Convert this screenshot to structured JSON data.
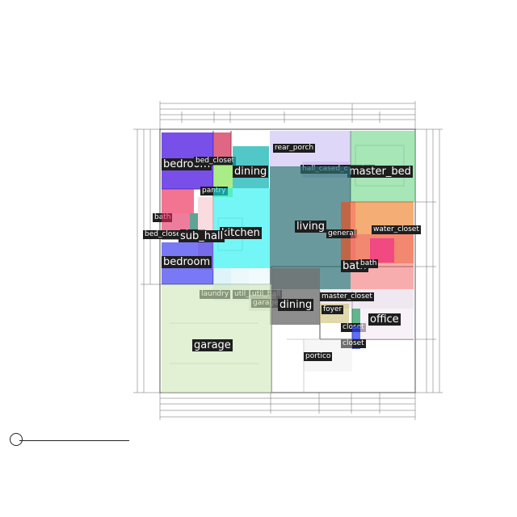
{
  "plan": {
    "rooms": [
      {
        "id": "bedroom-1",
        "label": "bedroom",
        "size": "lg",
        "color": "#4b14e0",
        "opacity": 0.75
      },
      {
        "id": "bed-closet-1",
        "label": "bed_closet",
        "size": "sm",
        "color": "#d0264f",
        "opacity": 0.7
      },
      {
        "id": "dining-1",
        "label": "dining",
        "size": "lg",
        "color": "#17b4b4",
        "opacity": 0.75
      },
      {
        "id": "rear-porch",
        "label": "rear_porch",
        "size": "sm",
        "color": "#c2b6f2",
        "opacity": 0.55
      },
      {
        "id": "hall-cased-opening",
        "label": "hall_cased_opening",
        "size": "sm",
        "color": "#c7b6ee",
        "opacity": 0.5
      },
      {
        "id": "master-bed",
        "label": "master_bed",
        "size": "lg",
        "color": "#5dd27b",
        "opacity": 0.55
      },
      {
        "id": "pantry",
        "label": "pantry",
        "size": "sm",
        "color": "#86e652",
        "opacity": 0.7
      },
      {
        "id": "kitchen",
        "label": "kitchen",
        "size": "lg",
        "color": "#19f0f0",
        "opacity": 0.6
      },
      {
        "id": "living",
        "label": "living",
        "size": "lg",
        "color": "#2b6e73",
        "opacity": 0.7
      },
      {
        "id": "bath-1",
        "label": "bath",
        "size": "sm",
        "color": "#ec2a55",
        "opacity": 0.65
      },
      {
        "id": "bed-closet-2",
        "label": "bed_closet",
        "size": "sm",
        "color": "#e2245a",
        "opacity": 0.6
      },
      {
        "id": "closet-1",
        "label": "closet",
        "size": "sm",
        "color": "#1d7a66",
        "opacity": 0.7
      },
      {
        "id": "sub-hall",
        "label": "sub_hall",
        "size": "lg",
        "color": "#f6c4cc",
        "opacity": 0.6
      },
      {
        "id": "general",
        "label": "general",
        "size": "sm",
        "color": "#f04a18",
        "opacity": 0.65
      },
      {
        "id": "water-closet",
        "label": "water_closet",
        "size": "sm",
        "color": "#f08a3a",
        "opacity": 0.7
      },
      {
        "id": "bath-2",
        "label": "bath",
        "size": "lg",
        "color": "#f06a6a",
        "opacity": 0.55
      },
      {
        "id": "bath-3",
        "label": "bath",
        "size": "sm",
        "color": "#f02090",
        "opacity": 0.6
      },
      {
        "id": "bedroom-2",
        "label": "bedroom",
        "size": "lg",
        "color": "#2020f0",
        "opacity": 0.6
      },
      {
        "id": "laundry",
        "label": "laundry",
        "size": "sm",
        "color": "#c9ecf5",
        "opacity": 0.6
      },
      {
        "id": "util-hall",
        "label": "util_hall",
        "size": "sm",
        "color": "#dff3f7",
        "opacity": 0.6
      },
      {
        "id": "util-hall-2",
        "label": "util_hall",
        "size": "sm",
        "color": "#e7f7fa",
        "opacity": 0.6
      },
      {
        "id": "garage-g",
        "label": "garage_g",
        "size": "sm",
        "color": "#d9d9d9",
        "opacity": 0.6
      },
      {
        "id": "dining-2",
        "label": "dining",
        "size": "lg",
        "color": "#707070",
        "opacity": 0.8
      },
      {
        "id": "master-closet",
        "label": "master_closet",
        "size": "sm",
        "color": "#e6d8e6",
        "opacity": 0.6
      },
      {
        "id": "foyer",
        "label": "foyer",
        "size": "sm",
        "color": "#c8b866",
        "opacity": 0.55
      },
      {
        "id": "closet-2",
        "label": "closet",
        "size": "sm",
        "color": "#2e9e66",
        "opacity": 0.75
      },
      {
        "id": "closet-3",
        "label": "closet",
        "size": "sm",
        "color": "#2a3ef0",
        "opacity": 0.75
      },
      {
        "id": "office",
        "label": "office",
        "size": "lg",
        "color": "#f4eaf4",
        "opacity": 0.65
      },
      {
        "id": "garage",
        "label": "garage",
        "size": "lg",
        "color": "#cfe6b8",
        "opacity": 0.6
      },
      {
        "id": "portico",
        "label": "portico",
        "size": "sm",
        "color": "#e9e9e9",
        "opacity": 0.4
      }
    ]
  }
}
